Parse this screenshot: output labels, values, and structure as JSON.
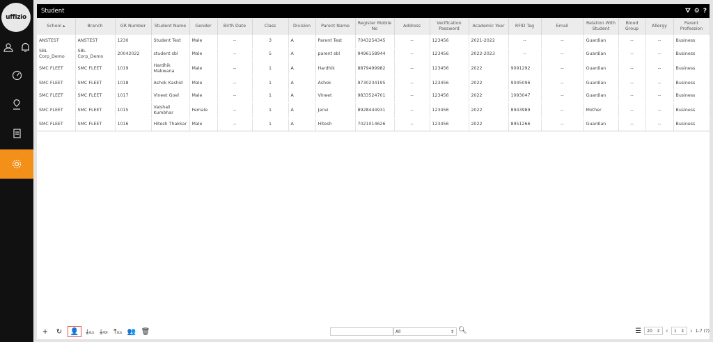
{
  "logo": "uffizio",
  "title": "Student",
  "icons": {
    "filter": "filter-icon",
    "settings": "gear-icon",
    "help": "?"
  },
  "columns": [
    "School ▴",
    "Branch",
    "GR Number",
    "Student Name",
    "Gender",
    "Birth Date",
    "Class",
    "Division",
    "Parent Name",
    "Register Mobile No",
    "Address",
    "Verification Password",
    "Academic Year",
    "RFID Tag",
    "Email",
    "Relation With Student",
    "Blood Group",
    "Allergy",
    "Parent Profession"
  ],
  "rows": [
    [
      "ANSTEST",
      "ANSTEST",
      "1230",
      "Student Test",
      "Male",
      "--",
      "3",
      "A",
      "Parent Test",
      "7043254345",
      "--",
      "123456",
      "2021-2022",
      "--",
      "--",
      "Guardian",
      "--",
      "--",
      "Business"
    ],
    [
      "SBL Corp_Demo",
      "SBL Corp_Demo",
      "20042022",
      "student sbl",
      "Male",
      "--",
      "5",
      "A",
      "parent sbl",
      "9496158944",
      "--",
      "123456",
      "2022-2023",
      "--",
      "--",
      "Guardian",
      "--",
      "--",
      "Business"
    ],
    [
      "SMC FLEET",
      "SMC FLEET",
      "1019",
      "Hardhik Makwana",
      "Male",
      "--",
      "1",
      "A",
      "Hardhik",
      "8879499982",
      "--",
      "123456",
      "2022",
      "9091292",
      "--",
      "Guardian",
      "--",
      "--",
      "Business"
    ],
    [
      "SMC FLEET",
      "SMC FLEET",
      "1018",
      "Ashok Kashid",
      "Male",
      "--",
      "1",
      "A",
      "Ashok",
      "9730234195",
      "--",
      "123456",
      "2022",
      "9045096",
      "--",
      "Guardian",
      "--",
      "--",
      "Business"
    ],
    [
      "SMC FLEET",
      "SMC FLEET",
      "1017",
      "Vineet Goel",
      "Male",
      "--",
      "1",
      "A",
      "Vineet",
      "9833524701",
      "--",
      "123456",
      "2022",
      "1093047",
      "--",
      "Guardian",
      "--",
      "--",
      "Business"
    ],
    [
      "SMC FLEET",
      "SMC FLEET",
      "1015",
      "Vaishali Kumbhar",
      "Female",
      "--",
      "1",
      "A",
      "Janvi",
      "8928444931",
      "--",
      "123456",
      "2022",
      "8943989",
      "--",
      "Mother",
      "--",
      "--",
      "Business"
    ],
    [
      "SMC FLEET",
      "SMC FLEET",
      "1016",
      "Hitesh Thakkar",
      "Male",
      "--",
      "1",
      "A",
      "Hitesh",
      "7021014626",
      "--",
      "123456",
      "2022",
      "8951266",
      "--",
      "Guardian",
      "--",
      "--",
      "Business"
    ]
  ],
  "footer": {
    "add": "+",
    "refresh": "↻",
    "xls_label": "XLS",
    "pdf_label": "PDF",
    "search_value": "",
    "filter_select": "All",
    "page_size": "20",
    "page": "1",
    "range": "1-7 (7)"
  },
  "colors": {
    "accent": "#f39019",
    "sidebar": "#111111",
    "header": "#000000"
  }
}
